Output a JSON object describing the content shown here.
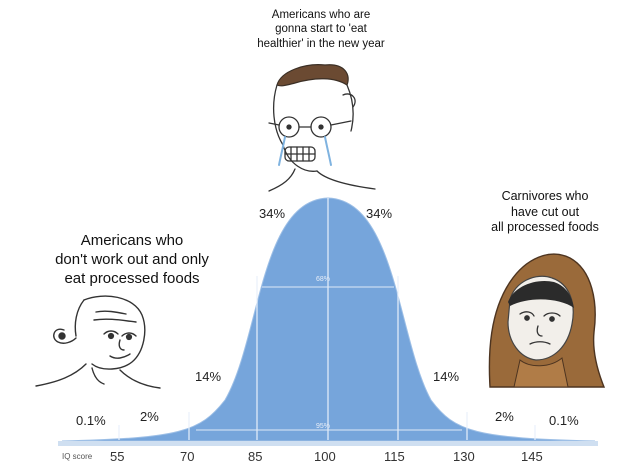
{
  "captions": {
    "top": "Americans who are\ngonna start to 'eat\nhealthier' in the new year",
    "left": "Americans who\ndon't work out and only\neat processed foods",
    "right": "Carnivores who\nhave cut out\nall processed foods"
  },
  "distribution": {
    "percent_labels": [
      "0.1%",
      "2%",
      "14%",
      "34%",
      "34%",
      "14%",
      "2%",
      "0.1%"
    ],
    "band_labels": {
      "inner": "68%",
      "outer": "95%"
    },
    "axis_label": "IQ score",
    "ticks": [
      "55",
      "70",
      "85",
      "100",
      "115",
      "130",
      "145"
    ]
  },
  "characters": {
    "left": "wojak-bald-smug",
    "middle": "wojak-crying-glasses",
    "right": "wojak-hooded-sad"
  },
  "colors": {
    "curve": "#76a5db",
    "curve_line": "#9dbfe6",
    "band_line": "#e8f0fb",
    "axis": "#cfdff1"
  }
}
